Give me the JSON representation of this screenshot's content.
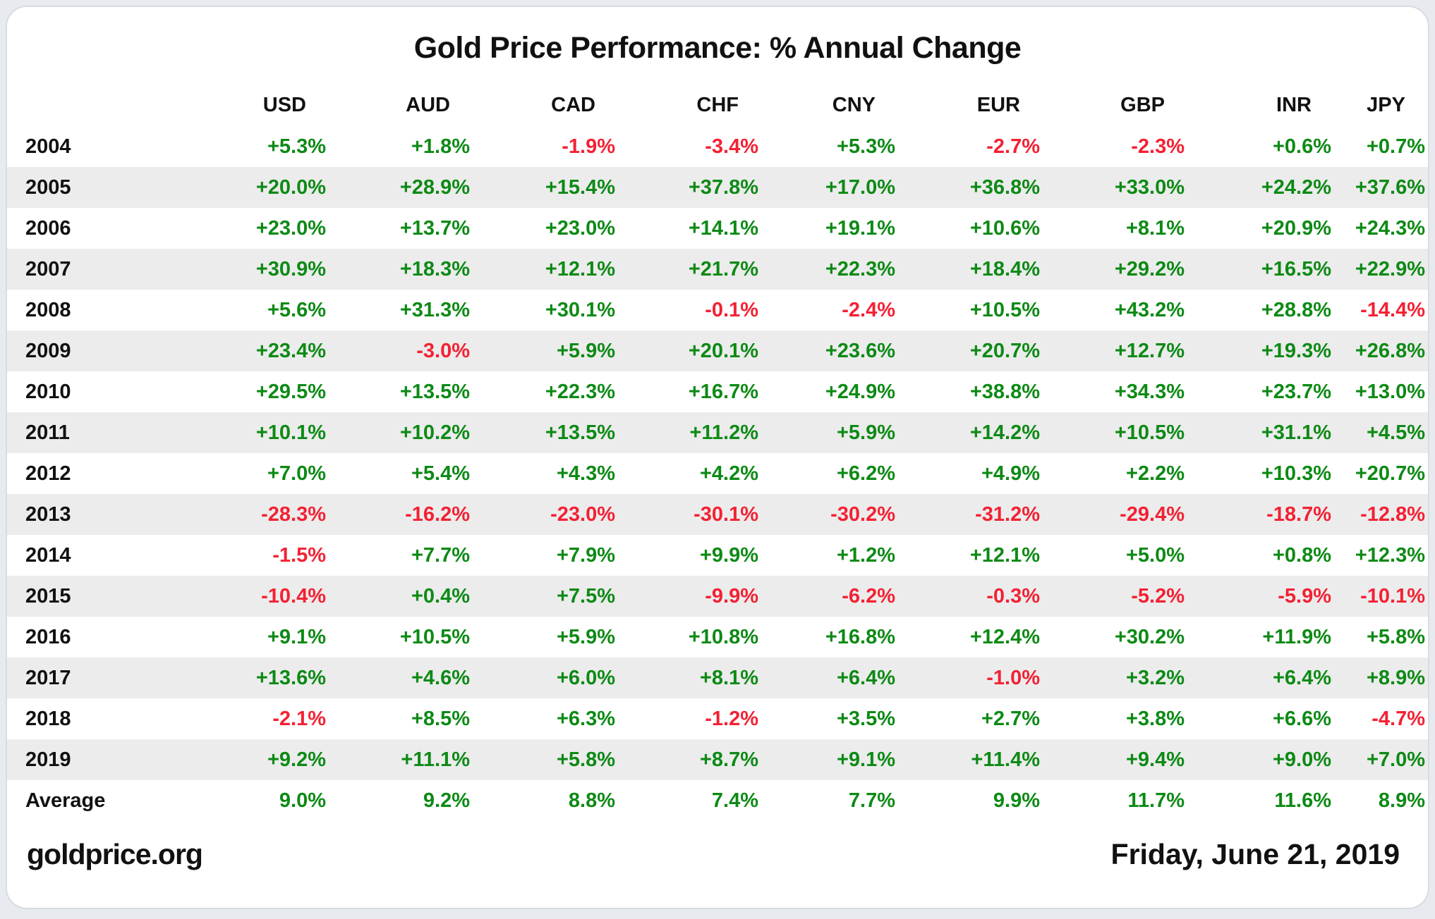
{
  "title": "Gold Price Performance: % Annual Change",
  "columns": [
    "USD",
    "AUD",
    "CAD",
    "CHF",
    "CNY",
    "EUR",
    "GBP",
    "INR",
    "JPY"
  ],
  "rows": [
    {
      "label": "2004",
      "values": [
        "+5.3%",
        "+1.8%",
        "-1.9%",
        "-3.4%",
        "+5.3%",
        "-2.7%",
        "-2.3%",
        "+0.6%",
        "+0.7%"
      ]
    },
    {
      "label": "2005",
      "values": [
        "+20.0%",
        "+28.9%",
        "+15.4%",
        "+37.8%",
        "+17.0%",
        "+36.8%",
        "+33.0%",
        "+24.2%",
        "+37.6%"
      ]
    },
    {
      "label": "2006",
      "values": [
        "+23.0%",
        "+13.7%",
        "+23.0%",
        "+14.1%",
        "+19.1%",
        "+10.6%",
        "+8.1%",
        "+20.9%",
        "+24.3%"
      ]
    },
    {
      "label": "2007",
      "values": [
        "+30.9%",
        "+18.3%",
        "+12.1%",
        "+21.7%",
        "+22.3%",
        "+18.4%",
        "+29.2%",
        "+16.5%",
        "+22.9%"
      ]
    },
    {
      "label": "2008",
      "values": [
        "+5.6%",
        "+31.3%",
        "+30.1%",
        "-0.1%",
        "-2.4%",
        "+10.5%",
        "+43.2%",
        "+28.8%",
        "-14.4%"
      ]
    },
    {
      "label": "2009",
      "values": [
        "+23.4%",
        "-3.0%",
        "+5.9%",
        "+20.1%",
        "+23.6%",
        "+20.7%",
        "+12.7%",
        "+19.3%",
        "+26.8%"
      ]
    },
    {
      "label": "2010",
      "values": [
        "+29.5%",
        "+13.5%",
        "+22.3%",
        "+16.7%",
        "+24.9%",
        "+38.8%",
        "+34.3%",
        "+23.7%",
        "+13.0%"
      ]
    },
    {
      "label": "2011",
      "values": [
        "+10.1%",
        "+10.2%",
        "+13.5%",
        "+11.2%",
        "+5.9%",
        "+14.2%",
        "+10.5%",
        "+31.1%",
        "+4.5%"
      ]
    },
    {
      "label": "2012",
      "values": [
        "+7.0%",
        "+5.4%",
        "+4.3%",
        "+4.2%",
        "+6.2%",
        "+4.9%",
        "+2.2%",
        "+10.3%",
        "+20.7%"
      ]
    },
    {
      "label": "2013",
      "values": [
        "-28.3%",
        "-16.2%",
        "-23.0%",
        "-30.1%",
        "-30.2%",
        "-31.2%",
        "-29.4%",
        "-18.7%",
        "-12.8%"
      ]
    },
    {
      "label": "2014",
      "values": [
        "-1.5%",
        "+7.7%",
        "+7.9%",
        "+9.9%",
        "+1.2%",
        "+12.1%",
        "+5.0%",
        "+0.8%",
        "+12.3%"
      ]
    },
    {
      "label": "2015",
      "values": [
        "-10.4%",
        "+0.4%",
        "+7.5%",
        "-9.9%",
        "-6.2%",
        "-0.3%",
        "-5.2%",
        "-5.9%",
        "-10.1%"
      ]
    },
    {
      "label": "2016",
      "values": [
        "+9.1%",
        "+10.5%",
        "+5.9%",
        "+10.8%",
        "+16.8%",
        "+12.4%",
        "+30.2%",
        "+11.9%",
        "+5.8%"
      ]
    },
    {
      "label": "2017",
      "values": [
        "+13.6%",
        "+4.6%",
        "+6.0%",
        "+8.1%",
        "+6.4%",
        "-1.0%",
        "+3.2%",
        "+6.4%",
        "+8.9%"
      ]
    },
    {
      "label": "2018",
      "values": [
        "-2.1%",
        "+8.5%",
        "+6.3%",
        "-1.2%",
        "+3.5%",
        "+2.7%",
        "+3.8%",
        "+6.6%",
        "-4.7%"
      ]
    },
    {
      "label": "2019",
      "values": [
        "+9.2%",
        "+11.1%",
        "+5.8%",
        "+8.7%",
        "+9.1%",
        "+11.4%",
        "+9.4%",
        "+9.0%",
        "+7.0%"
      ]
    },
    {
      "label": "Average",
      "values": [
        "9.0%",
        "9.2%",
        "8.8%",
        "7.4%",
        "7.7%",
        "9.9%",
        "11.7%",
        "11.6%",
        "8.9%"
      ]
    }
  ],
  "footer": {
    "source": "goldprice.org",
    "date": "Friday, June 21, 2019"
  },
  "colors": {
    "positive": "#0d8a15",
    "negative": "#f32133",
    "stripe_row": "#ececec",
    "card_background": "#ffffff",
    "page_background": "#e7eaee"
  },
  "chart_data": {
    "type": "table",
    "title": "Gold Price Performance: % Annual Change",
    "categories": [
      "2004",
      "2005",
      "2006",
      "2007",
      "2008",
      "2009",
      "2010",
      "2011",
      "2012",
      "2013",
      "2014",
      "2015",
      "2016",
      "2017",
      "2018",
      "2019"
    ],
    "unit": "percent annual change",
    "series": [
      {
        "name": "USD",
        "values": [
          5.3,
          20.0,
          23.0,
          30.9,
          5.6,
          23.4,
          29.5,
          10.1,
          7.0,
          -28.3,
          -1.5,
          -10.4,
          9.1,
          13.6,
          -2.1,
          9.2
        ],
        "average": 9.0
      },
      {
        "name": "AUD",
        "values": [
          1.8,
          28.9,
          13.7,
          18.3,
          31.3,
          -3.0,
          13.5,
          10.2,
          5.4,
          -16.2,
          7.7,
          0.4,
          10.5,
          4.6,
          8.5,
          11.1
        ],
        "average": 9.2
      },
      {
        "name": "CAD",
        "values": [
          -1.9,
          15.4,
          23.0,
          12.1,
          30.1,
          5.9,
          22.3,
          13.5,
          4.3,
          -23.0,
          7.9,
          7.5,
          5.9,
          6.0,
          6.3,
          5.8
        ],
        "average": 8.8
      },
      {
        "name": "CHF",
        "values": [
          -3.4,
          37.8,
          14.1,
          21.7,
          -0.1,
          20.1,
          16.7,
          11.2,
          4.2,
          -30.1,
          9.9,
          -9.9,
          10.8,
          8.1,
          -1.2,
          8.7
        ],
        "average": 7.4
      },
      {
        "name": "CNY",
        "values": [
          5.3,
          17.0,
          19.1,
          22.3,
          -2.4,
          23.6,
          24.9,
          5.9,
          6.2,
          -30.2,
          1.2,
          -6.2,
          16.8,
          6.4,
          3.5,
          9.1
        ],
        "average": 7.7
      },
      {
        "name": "EUR",
        "values": [
          -2.7,
          36.8,
          10.6,
          18.4,
          10.5,
          20.7,
          38.8,
          14.2,
          4.9,
          -31.2,
          12.1,
          -0.3,
          12.4,
          -1.0,
          2.7,
          11.4
        ],
        "average": 9.9
      },
      {
        "name": "GBP",
        "values": [
          -2.3,
          33.0,
          8.1,
          29.2,
          43.2,
          12.7,
          34.3,
          10.5,
          2.2,
          -29.4,
          5.0,
          -5.2,
          30.2,
          3.2,
          3.8,
          9.4
        ],
        "average": 11.7
      },
      {
        "name": "INR",
        "values": [
          0.6,
          24.2,
          20.9,
          16.5,
          28.8,
          19.3,
          23.7,
          31.1,
          10.3,
          -18.7,
          0.8,
          -5.9,
          11.9,
          6.4,
          6.6,
          9.0
        ],
        "average": 11.6
      },
      {
        "name": "JPY",
        "values": [
          0.7,
          37.6,
          24.3,
          22.9,
          -14.4,
          26.8,
          13.0,
          4.5,
          20.7,
          -12.8,
          12.3,
          -10.1,
          5.8,
          8.9,
          -4.7,
          7.0
        ],
        "average": 8.9
      }
    ]
  }
}
